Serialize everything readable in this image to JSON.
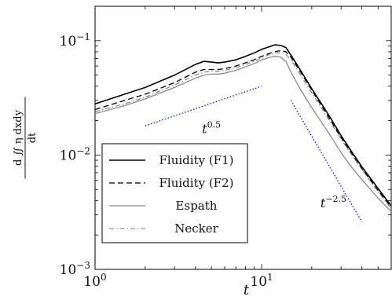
{
  "chart_data": {
    "type": "line",
    "xscale": "log",
    "yscale": "log",
    "xlim": [
      1,
      60
    ],
    "ylim": [
      0.001,
      0.2
    ],
    "xlabel": "t",
    "ylabel": "d ∬ η dxdy / dt",
    "xticks": [
      {
        "value": 1,
        "base": "10",
        "exp": "0"
      },
      {
        "value": 10,
        "base": "10",
        "exp": "1"
      }
    ],
    "yticks": [
      {
        "value": 0.001,
        "base": "10",
        "exp": "−3"
      },
      {
        "value": 0.01,
        "base": "10",
        "exp": "−2"
      },
      {
        "value": 0.1,
        "base": "10",
        "exp": "−1"
      }
    ],
    "legend_position": "bottom-left",
    "series": [
      {
        "name": "Fluidity (F1)",
        "color": "#000000",
        "dash": "solid",
        "width": 1.6,
        "x": [
          1,
          1.5,
          2,
          3,
          4,
          4.5,
          5,
          5.5,
          6,
          7,
          8,
          9,
          10,
          11,
          12,
          13,
          14,
          15,
          17,
          20,
          25,
          30,
          35,
          40,
          50,
          60
        ],
        "y": [
          0.028,
          0.034,
          0.039,
          0.05,
          0.062,
          0.066,
          0.065,
          0.064,
          0.065,
          0.068,
          0.073,
          0.078,
          0.084,
          0.088,
          0.092,
          0.091,
          0.087,
          0.075,
          0.056,
          0.038,
          0.023,
          0.0148,
          0.0105,
          0.0079,
          0.0051,
          0.0036
        ]
      },
      {
        "name": "Fluidity (F2)",
        "color": "#000000",
        "dash": "dashed",
        "width": 1.3,
        "x": [
          1,
          1.5,
          2,
          3,
          4,
          4.5,
          5,
          5.5,
          6,
          7,
          8,
          9,
          10,
          11,
          12,
          13,
          14,
          15,
          17,
          20,
          25,
          30,
          35,
          40,
          50,
          60
        ],
        "y": [
          0.025,
          0.03,
          0.034,
          0.043,
          0.053,
          0.056,
          0.056,
          0.056,
          0.057,
          0.06,
          0.064,
          0.068,
          0.073,
          0.077,
          0.08,
          0.082,
          0.08,
          0.072,
          0.054,
          0.037,
          0.022,
          0.0142,
          0.0101,
          0.0076,
          0.0049,
          0.0035
        ]
      },
      {
        "name": "Espath",
        "color": "#888888",
        "dash": "solid",
        "width": 1.3,
        "x": [
          1,
          1.5,
          2,
          3,
          4,
          4.5,
          5,
          5.5,
          6,
          7,
          8,
          9,
          10,
          11,
          12,
          13,
          14,
          15,
          17,
          20,
          25,
          30,
          35,
          40,
          50,
          60
        ],
        "y": [
          0.023,
          0.027,
          0.031,
          0.039,
          0.047,
          0.05,
          0.051,
          0.051,
          0.052,
          0.055,
          0.059,
          0.063,
          0.068,
          0.071,
          0.073,
          0.072,
          0.066,
          0.053,
          0.038,
          0.026,
          0.016,
          0.0105,
          0.0077,
          0.0061,
          0.0042,
          0.0032
        ]
      },
      {
        "name": "Necker",
        "color": "#777777",
        "dash": "dashdot",
        "width": 1.1,
        "x": [
          1,
          1.5,
          2,
          3,
          4,
          4.5,
          5,
          5.5,
          6,
          7,
          8,
          9,
          10,
          11,
          12,
          13,
          14,
          15,
          17,
          20,
          25,
          30,
          35,
          40,
          50,
          60
        ],
        "y": [
          0.024,
          0.028,
          0.032,
          0.041,
          0.05,
          0.053,
          0.054,
          0.054,
          0.055,
          0.058,
          0.062,
          0.066,
          0.071,
          0.075,
          0.078,
          0.079,
          0.076,
          0.068,
          0.051,
          0.035,
          0.021,
          0.0138,
          0.0099,
          0.0075,
          0.0048,
          0.0034
        ]
      }
    ],
    "annotations": [
      {
        "label_base": "t",
        "label_exp": "0.5",
        "style": "dotted",
        "color": "#0000cc",
        "x": [
          2,
          10
        ],
        "y": [
          0.018,
          0.04
        ],
        "label_x": 5.0,
        "label_y": 0.0155
      },
      {
        "label_base": "t",
        "label_exp": "−2.5",
        "style": "dotted",
        "color": "#0000cc",
        "x": [
          15,
          40
        ],
        "y": [
          0.03,
          0.0026
        ],
        "label_x": 27,
        "label_y": 0.0035
      }
    ]
  }
}
